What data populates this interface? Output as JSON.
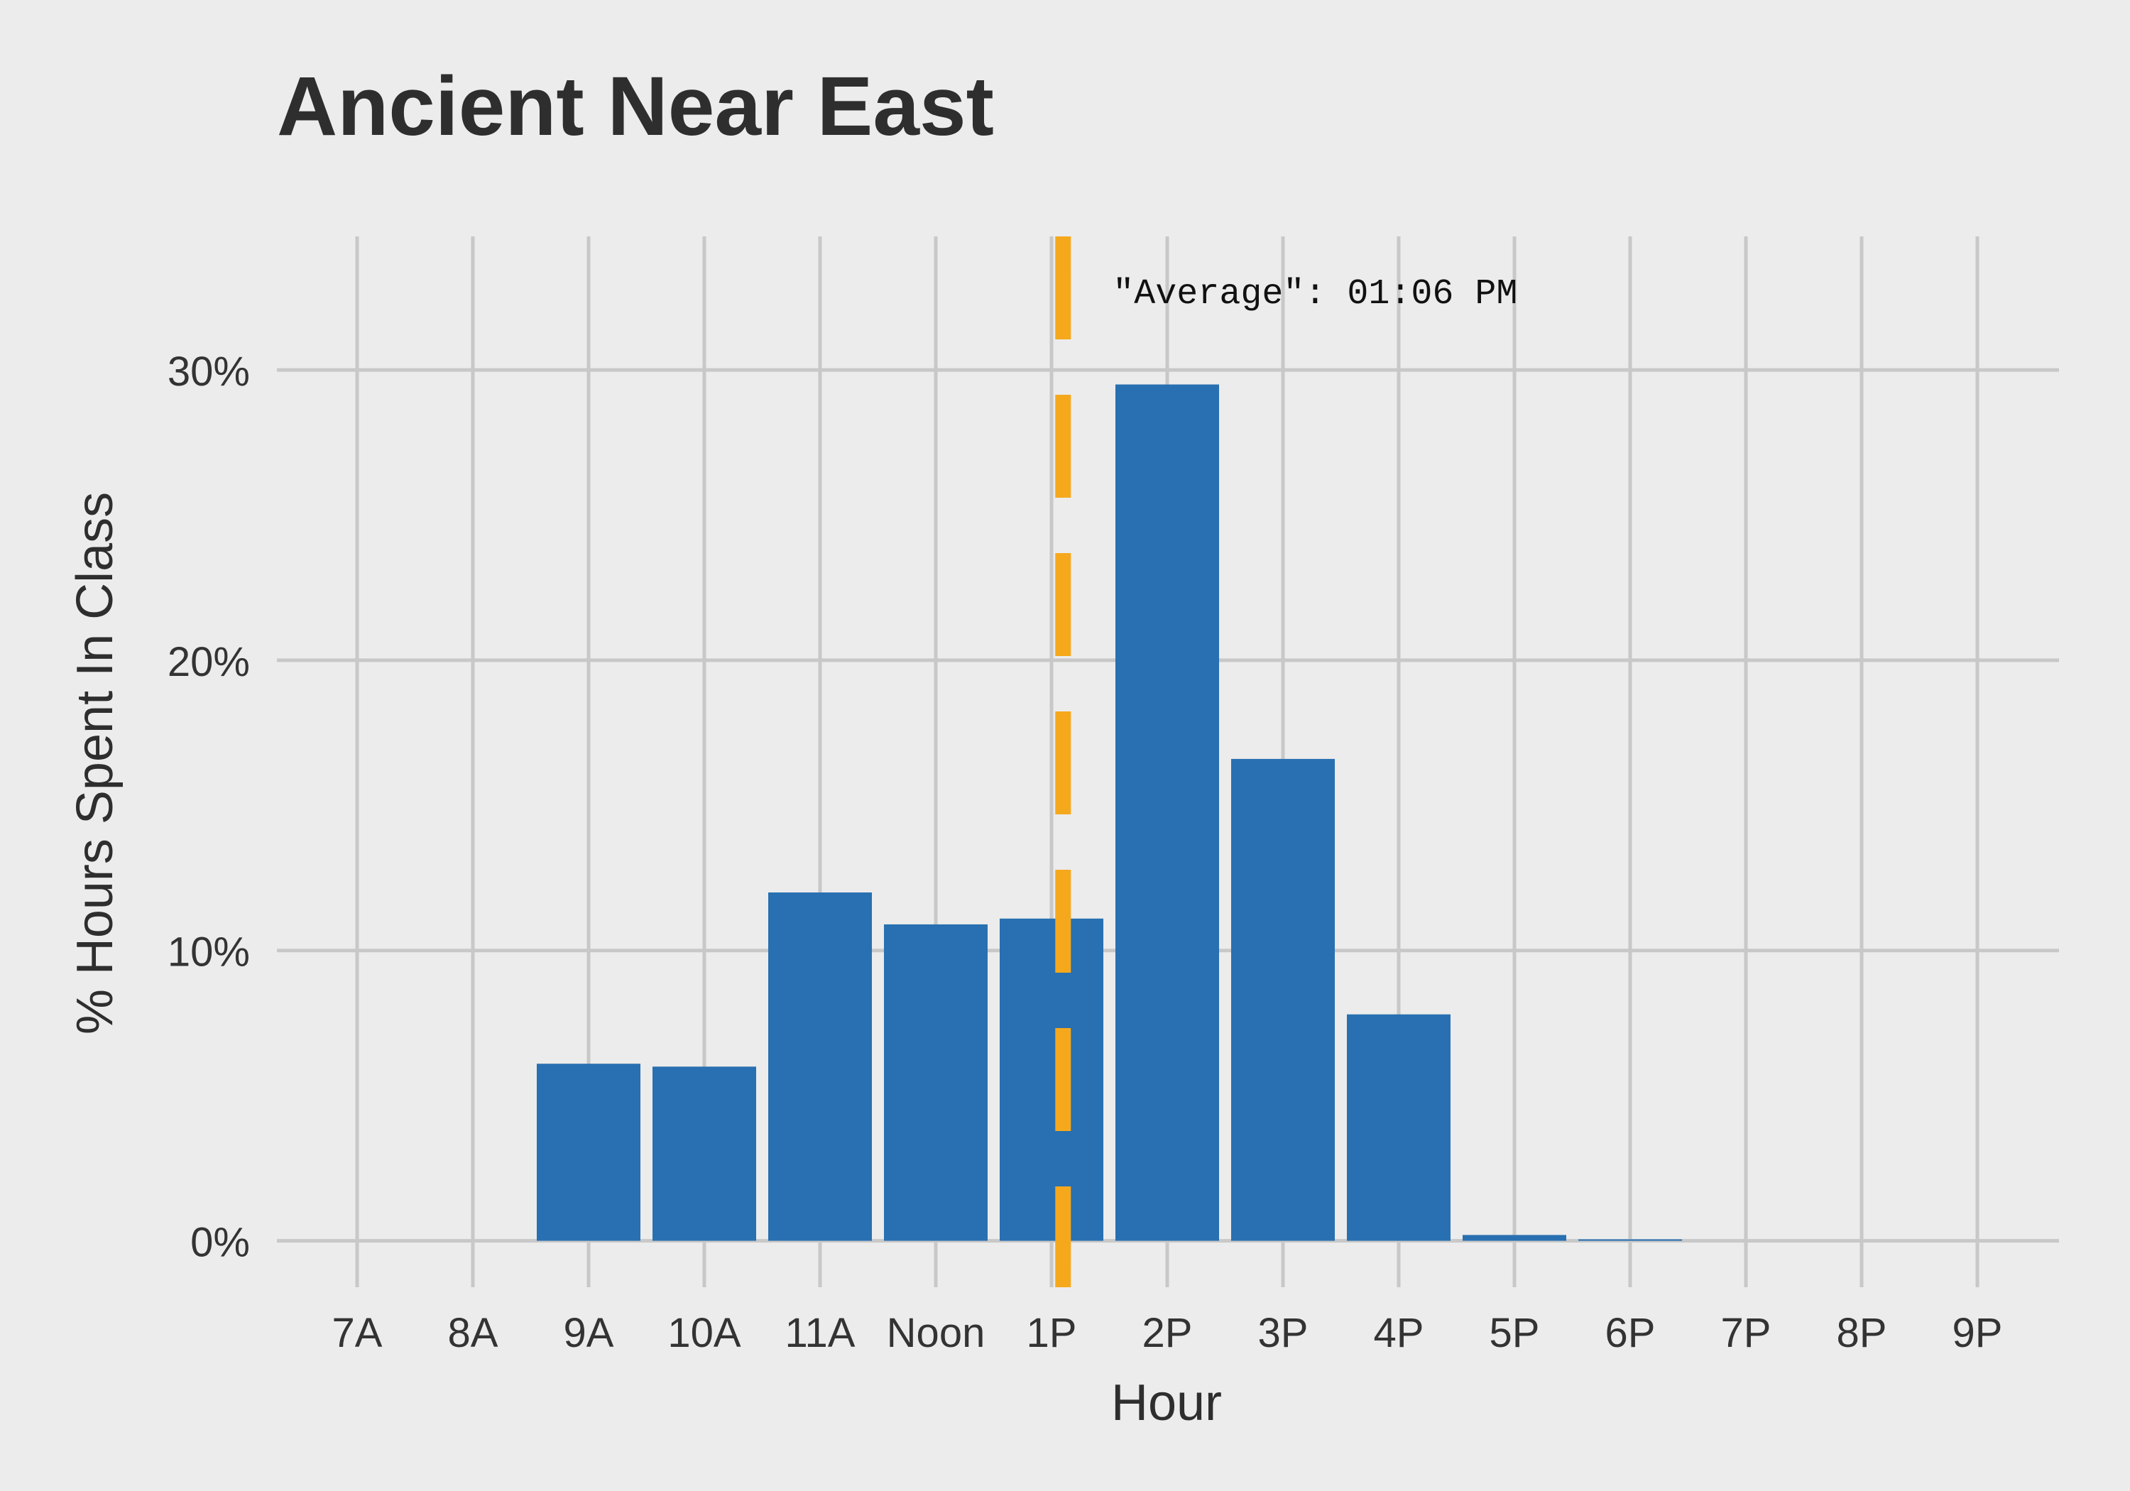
{
  "chart_data": {
    "type": "bar",
    "title": "Ancient Near East",
    "xlabel": "Hour",
    "ylabel": "% Hours Spent In Class",
    "categories": [
      "7A",
      "8A",
      "9A",
      "10A",
      "11A",
      "Noon",
      "1P",
      "2P",
      "3P",
      "4P",
      "5P",
      "6P",
      "7P",
      "8P",
      "9P"
    ],
    "values": [
      0,
      0,
      6.1,
      6.0,
      12.0,
      10.9,
      11.1,
      29.5,
      16.6,
      7.8,
      0.2,
      0.05,
      0,
      0,
      0
    ],
    "value_unit": "percent",
    "yticks": [
      0,
      10,
      20,
      30
    ],
    "ytick_labels": [
      "0%",
      "10%",
      "20%",
      "30%"
    ],
    "ylim": [
      -1.6,
      34.6
    ],
    "grid": true,
    "legend": "none",
    "reference_line": {
      "x_hour": 13.1,
      "label": "\"Average\": 01:06 PM",
      "color": "#f6a81c",
      "style": "dashed"
    },
    "colors": {
      "bar": "#2870b1",
      "grid": "#c8c8c8",
      "background": "#ececec"
    }
  }
}
